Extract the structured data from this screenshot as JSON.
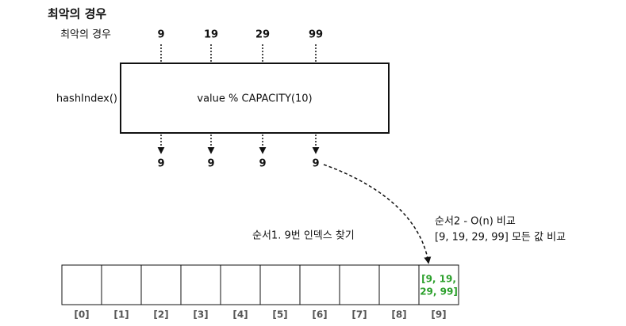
{
  "title": "최악의 경우",
  "input_label": "최악의 경우",
  "inputs": [
    "9",
    "19",
    "29",
    "99"
  ],
  "function_label": "hashIndex()",
  "function_body": "value % CAPACITY(10)",
  "outputs": [
    "9",
    "9",
    "9",
    "9"
  ],
  "step1": "순서1. 9번 인덱스 찾기",
  "step2": {
    "title": "순서2 - O(n) 비교",
    "detail": "[9, 19, 29, 99] 모든 값 비교"
  },
  "array": {
    "indices": [
      "[0]",
      "[1]",
      "[2]",
      "[3]",
      "[4]",
      "[5]",
      "[6]",
      "[7]",
      "[8]",
      "[9]"
    ],
    "filled_cell_lines": [
      "[9, 19,",
      "29, 99]"
    ]
  }
}
